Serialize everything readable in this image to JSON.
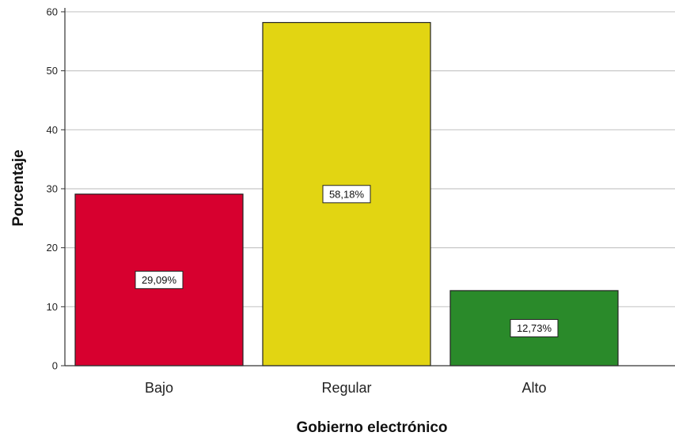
{
  "chart_data": {
    "type": "bar",
    "categories": [
      "Bajo",
      "Regular",
      "Alto"
    ],
    "values": [
      29.09,
      58.18,
      12.73
    ],
    "data_labels": [
      "29,09%",
      "58,18%",
      "12,73%"
    ],
    "colors": [
      "#d7002f",
      "#e2d512",
      "#2a8a2a"
    ],
    "xlabel": "Gobierno electrónico",
    "ylabel": "Porcentaje",
    "ylim": [
      0,
      62
    ],
    "yticks": [
      0,
      10,
      20,
      30,
      40,
      50,
      60
    ],
    "grid": true,
    "legend": "none"
  }
}
